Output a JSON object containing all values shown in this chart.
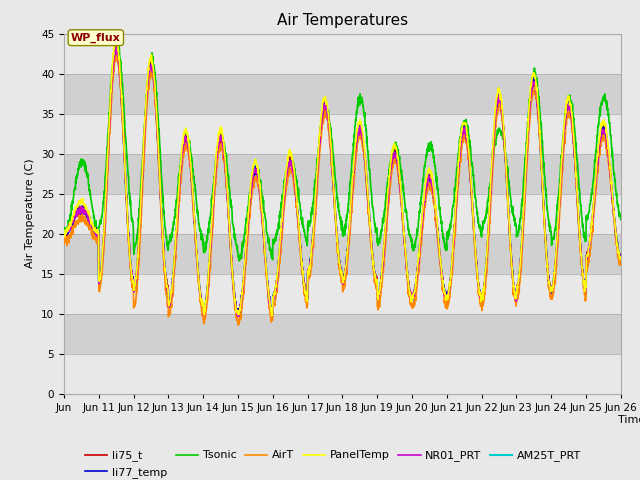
{
  "title": "Air Temperatures",
  "xlabel": "Time",
  "ylabel": "Air Temperature (C)",
  "ylim": [
    0,
    45
  ],
  "yticks": [
    0,
    5,
    10,
    15,
    20,
    25,
    30,
    35,
    40,
    45
  ],
  "x_tick_labels": [
    "Jun 11",
    "Jun 12",
    "Jun 13",
    "Jun 14",
    "Jun 15",
    "Jun 16",
    "Jun 17",
    "Jun 18",
    "Jun 19",
    "Jun 20",
    "Jun 21",
    "Jun 22",
    "Jun 23",
    "Jun 24",
    "Jun 25",
    "Jun 26"
  ],
  "annotation_text": "WP_flux",
  "series": [
    {
      "name": "li75_t",
      "color": "#cc0000",
      "lw": 1.2,
      "zorder": 5
    },
    {
      "name": "li77_temp",
      "color": "#0000cc",
      "lw": 1.2,
      "zorder": 5
    },
    {
      "name": "Tsonic",
      "color": "#00cc00",
      "lw": 1.2,
      "zorder": 4
    },
    {
      "name": "AirT",
      "color": "#ff8800",
      "lw": 1.2,
      "zorder": 5
    },
    {
      "name": "PanelTemp",
      "color": "#ffff00",
      "lw": 1.2,
      "zorder": 6
    },
    {
      "name": "NR01_PRT",
      "color": "#cc00cc",
      "lw": 1.2,
      "zorder": 5
    },
    {
      "name": "AM25T_PRT",
      "color": "#00cccc",
      "lw": 1.5,
      "zorder": 3
    }
  ],
  "bg_color": "#e8e8e8",
  "plot_bg_color": "#d8d8d8",
  "band_color_light": "#e8e8e8",
  "band_color_dark": "#d0d0d0",
  "title_fontsize": 11,
  "label_fontsize": 8,
  "tick_fontsize": 7.5
}
